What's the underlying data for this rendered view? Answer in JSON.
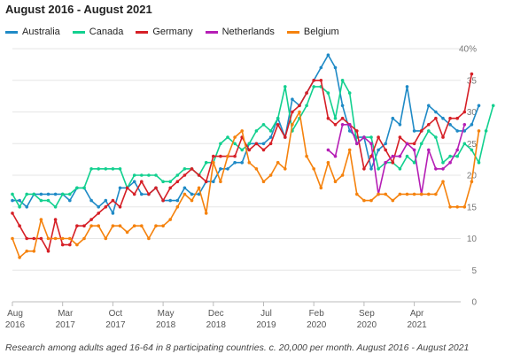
{
  "chart_data": {
    "type": "line",
    "title": "August 2016 - August 2021",
    "footnote": "Research among adults aged 16-64 in 8 participating countries. c. 20,000 per month. August 2016 - August 2021",
    "ylim": [
      0,
      40
    ],
    "yticks": [
      0,
      5,
      10,
      15,
      20,
      25,
      30,
      35,
      40
    ],
    "ytick_labels": [
      "0",
      "5",
      "10",
      "15",
      "20",
      "25",
      "30",
      "35",
      "40%"
    ],
    "xlim": [
      0,
      60
    ],
    "xticks": [
      {
        "x": 0,
        "line1": "Aug",
        "line2": "2016"
      },
      {
        "x": 7,
        "line1": "Mar",
        "line2": "2017"
      },
      {
        "x": 14,
        "line1": "Oct",
        "line2": "2017"
      },
      {
        "x": 21,
        "line1": "May",
        "line2": "2018"
      },
      {
        "x": 28,
        "line1": "Dec",
        "line2": "2018"
      },
      {
        "x": 35,
        "line1": "Jul",
        "line2": "2019"
      },
      {
        "x": 42,
        "line1": "Feb",
        "line2": "2020"
      },
      {
        "x": 49,
        "line1": "Sep",
        "line2": "2020"
      },
      {
        "x": 56,
        "line1": "Apr",
        "line2": "2021"
      }
    ],
    "grid": true,
    "legend_position": "top-left",
    "series": [
      {
        "name": "Australia",
        "color": "#1f8ac6",
        "segments": [
          {
            "start": 0,
            "values": [
              16,
              16,
              15,
              17,
              17,
              17,
              17,
              17,
              16,
              18,
              18,
              16,
              15,
              16,
              14,
              18,
              18,
              19,
              17,
              17,
              18,
              16,
              16,
              16,
              18,
              17,
              17,
              19,
              19,
              21,
              21,
              22,
              22,
              25,
              25,
              25,
              26,
              29,
              26,
              32,
              31,
              33,
              35,
              37,
              39,
              37,
              31,
              27,
              26,
              26,
              21,
              24,
              25,
              29,
              28,
              34,
              27,
              27,
              31,
              30,
              29,
              28,
              27,
              27,
              28,
              31
            ]
          }
        ]
      },
      {
        "name": "Canada",
        "color": "#12d08f",
        "segments": [
          {
            "start": 0,
            "values": [
              17,
              15,
              17,
              17,
              16,
              16,
              15,
              17,
              17,
              18,
              18,
              21,
              21,
              21,
              21,
              21,
              18,
              20,
              20,
              20,
              20,
              19,
              19,
              20,
              21,
              21,
              20,
              22,
              22,
              25,
              26,
              25,
              24,
              25,
              27,
              28,
              27,
              29,
              34,
              27,
              29,
              31,
              34,
              34,
              33,
              29,
              35,
              33,
              25,
              26,
              26,
              21,
              22,
              22,
              21,
              23,
              22,
              25,
              27,
              26,
              22,
              23,
              23,
              25,
              24,
              22,
              27,
              31
            ]
          }
        ]
      },
      {
        "name": "Germany",
        "color": "#d61f26",
        "segments": [
          {
            "start": 0,
            "values": [
              14,
              12,
              10,
              10,
              10,
              8,
              13,
              9,
              9,
              12,
              12,
              13,
              14,
              15,
              16,
              15,
              18,
              17,
              19,
              17,
              18,
              16,
              18,
              19,
              20,
              21,
              20,
              19,
              23,
              23,
              23,
              23,
              26,
              24,
              25,
              24,
              25,
              28,
              26,
              30,
              31,
              33,
              35,
              35,
              29,
              28,
              29,
              28,
              27,
              21,
              23,
              26,
              24,
              22,
              26,
              25,
              25,
              27,
              28,
              29,
              26,
              29,
              29,
              30,
              36
            ]
          }
        ]
      },
      {
        "name": "Netherlands",
        "color": "#b51eb5",
        "segments": [
          {
            "start": 44,
            "values": [
              24,
              23,
              28,
              28,
              25,
              26,
              25,
              17,
              22,
              23,
              23,
              25,
              24,
              17,
              24,
              21,
              21,
              22,
              24,
              28
            ]
          }
        ]
      },
      {
        "name": "Belgium",
        "color": "#f5820d",
        "segments": [
          {
            "start": 0,
            "values": [
              10,
              7,
              8,
              8,
              13,
              10,
              10,
              10,
              10,
              9,
              10,
              12,
              12,
              10,
              12,
              12,
              11,
              12,
              12,
              10,
              12,
              12,
              13,
              15,
              17,
              16,
              18,
              14,
              22,
              19,
              23,
              26,
              27,
              22,
              21,
              19,
              20,
              22,
              21,
              28,
              30,
              23,
              21,
              18,
              22,
              19,
              20,
              24,
              17,
              16,
              16,
              17,
              17,
              16,
              17,
              17,
              17,
              17,
              17,
              17,
              19,
              15,
              15,
              15,
              19,
              27
            ]
          }
        ]
      }
    ]
  }
}
